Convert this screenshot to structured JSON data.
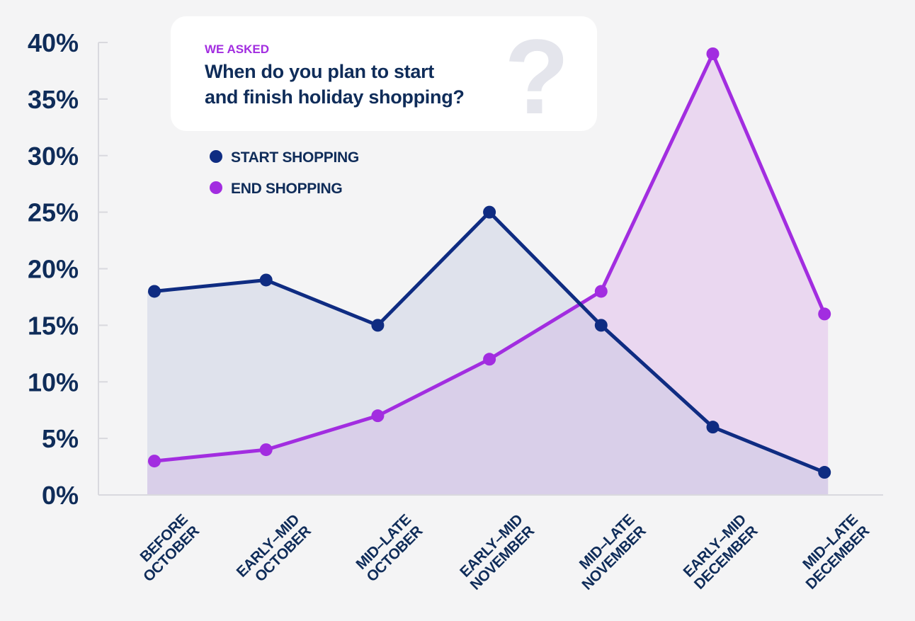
{
  "header": {
    "kicker": "WE ASKED",
    "question_line1": "When do you plan to start",
    "question_line2": "and finish holiday shopping?",
    "decorative_glyph": "?"
  },
  "colors": {
    "start": "#0f2c82",
    "end": "#a22de0",
    "axis_text": "#0f2c59",
    "start_fill": "#dfe2ec",
    "end_fill": "#ead7f0",
    "overlap_fill": "#d9cfe9",
    "card": "#ffffff",
    "glyph": "#e4e5ec",
    "axis_line": "#d9d9de"
  },
  "chart_data": {
    "type": "area",
    "categories": [
      [
        "BEFORE",
        "OCTOBER"
      ],
      [
        "EARLY–MID",
        "OCTOBER"
      ],
      [
        "MID–LATE",
        "OCTOBER"
      ],
      [
        "EARLY–MID",
        "NOVEMBER"
      ],
      [
        "MID–LATE",
        "NOVEMBER"
      ],
      [
        "EARLY–MID",
        "DECEMBER"
      ],
      [
        "MID–LATE",
        "DECEMBER"
      ]
    ],
    "series": [
      {
        "name": "START SHOPPING",
        "values": [
          18,
          19,
          15,
          25,
          15,
          6,
          2
        ]
      },
      {
        "name": "END SHOPPING",
        "values": [
          3,
          4,
          7,
          12,
          18,
          39,
          16
        ]
      }
    ],
    "yticks": [
      "0%",
      "5%",
      "10%",
      "15%",
      "20%",
      "25%",
      "30%",
      "35%",
      "40%"
    ],
    "ylim": [
      0,
      40
    ],
    "legend_position": "top-left",
    "grid": false
  }
}
